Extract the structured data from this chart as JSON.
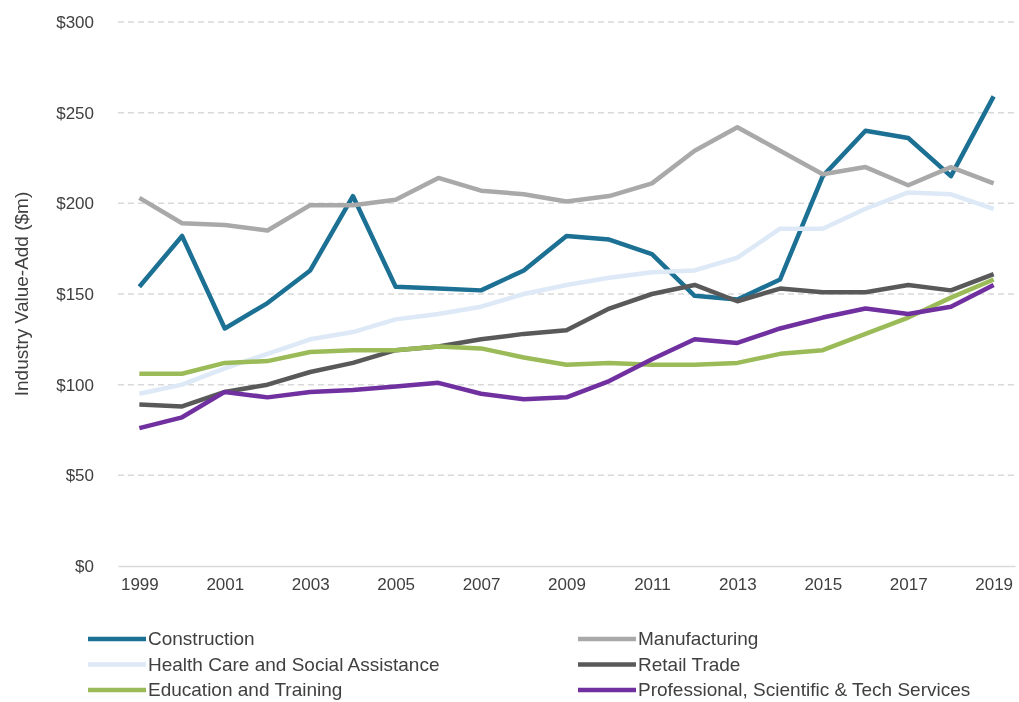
{
  "chart_data": {
    "type": "line",
    "ylabel": "Industry Value-Add ($m)",
    "x": [
      1999,
      2000,
      2001,
      2002,
      2003,
      2004,
      2005,
      2006,
      2007,
      2008,
      2009,
      2010,
      2011,
      2012,
      2013,
      2014,
      2015,
      2016,
      2017,
      2018,
      2019
    ],
    "xlim": [
      1998.5,
      2019.5
    ],
    "xticks": [
      1999,
      2001,
      2003,
      2005,
      2007,
      2009,
      2011,
      2013,
      2015,
      2017,
      2019
    ],
    "ylim": [
      0,
      300
    ],
    "yticks": [
      {
        "value": 0,
        "label": "$0"
      },
      {
        "value": 50,
        "label": "$50"
      },
      {
        "value": 100,
        "label": "$100"
      },
      {
        "value": 150,
        "label": "$150"
      },
      {
        "value": 200,
        "label": "$200"
      },
      {
        "value": 250,
        "label": "$250"
      },
      {
        "value": 300,
        "label": "$300"
      }
    ],
    "grid": "y",
    "legend": "bottom",
    "line_style": "solid",
    "marker": "none",
    "series": [
      {
        "name": "Construction",
        "color": "#1b7094",
        "values": [
          154,
          182,
          131,
          145,
          163,
          204,
          154,
          153,
          152,
          163,
          182,
          180,
          172,
          149,
          147,
          158,
          215,
          240,
          236,
          215,
          259
        ]
      },
      {
        "name": "Manufacturing",
        "color": "#a9a9a9",
        "values": [
          203,
          189,
          188,
          185,
          199,
          199,
          202,
          214,
          207,
          205,
          201,
          204,
          211,
          229,
          242,
          229,
          216,
          220,
          210,
          220,
          211
        ]
      },
      {
        "name": "Health Care and Social Assistance",
        "color": "#dde9f6",
        "values": [
          95,
          100,
          109,
          117,
          125,
          129,
          136,
          139,
          143,
          150,
          155,
          159,
          162,
          163,
          170,
          186,
          186,
          197,
          206,
          205,
          197
        ]
      },
      {
        "name": "Retail Trade",
        "color": "#595959",
        "values": [
          89,
          88,
          96,
          100,
          107,
          112,
          119,
          121,
          125,
          128,
          130,
          142,
          150,
          155,
          146,
          153,
          151,
          151,
          155,
          152,
          161
        ]
      },
      {
        "name": "Education and Training",
        "color": "#9bbb59",
        "values": [
          106,
          106,
          112,
          113,
          118,
          119,
          119,
          121,
          120,
          115,
          111,
          112,
          111,
          111,
          112,
          117,
          119,
          128,
          137,
          148,
          158
        ]
      },
      {
        "name": "Professional, Scientific & Tech Services",
        "color": "#7030a0",
        "values": [
          76,
          82,
          96,
          93,
          96,
          97,
          99,
          101,
          95,
          92,
          93,
          102,
          114,
          125,
          123,
          131,
          137,
          142,
          139,
          143,
          155
        ]
      }
    ]
  }
}
